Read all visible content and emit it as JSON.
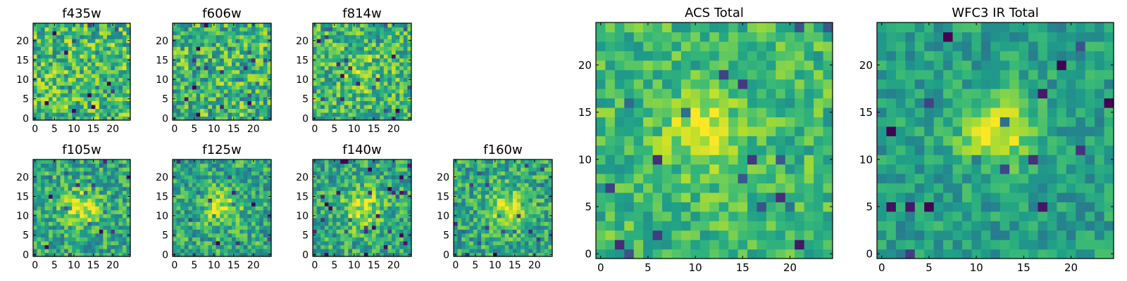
{
  "chart_data": [
    {
      "type": "heatmap",
      "title": "f435w",
      "grid_size": 25,
      "colormap": "viridis",
      "xticks": [
        0,
        5,
        10,
        15,
        20
      ],
      "yticks": [
        0,
        5,
        10,
        15,
        20
      ],
      "xlim": [
        -0.5,
        24.5
      ],
      "ylim": [
        -0.5,
        24.5
      ],
      "source_peak": [
        12,
        11
      ],
      "source_strength": 0.0,
      "source_width": 3.0,
      "noise_level": 0.55,
      "baseline": 0.68,
      "seed": 11
    },
    {
      "type": "heatmap",
      "title": "f606w",
      "grid_size": 25,
      "colormap": "viridis",
      "xticks": [
        0,
        5,
        10,
        15,
        20
      ],
      "yticks": [
        0,
        5,
        10,
        15,
        20
      ],
      "xlim": [
        -0.5,
        24.5
      ],
      "ylim": [
        -0.5,
        24.5
      ],
      "source_peak": [
        12,
        11
      ],
      "source_strength": 0.0,
      "source_width": 3.0,
      "noise_level": 0.55,
      "baseline": 0.66,
      "seed": 23
    },
    {
      "type": "heatmap",
      "title": "f814w",
      "grid_size": 25,
      "colormap": "viridis",
      "xticks": [
        0,
        5,
        10,
        15,
        20
      ],
      "yticks": [
        0,
        5,
        10,
        15,
        20
      ],
      "xlim": [
        -0.5,
        24.5
      ],
      "ylim": [
        -0.5,
        24.5
      ],
      "source_peak": [
        12,
        12
      ],
      "source_strength": 0.12,
      "source_width": 3.5,
      "noise_level": 0.5,
      "baseline": 0.66,
      "seed": 37
    },
    {
      "type": "heatmap",
      "title": "f105w",
      "grid_size": 25,
      "colormap": "viridis",
      "xticks": [
        0,
        5,
        10,
        15,
        20
      ],
      "yticks": [
        0,
        5,
        10,
        15,
        20
      ],
      "xlim": [
        -0.5,
        24.5
      ],
      "ylim": [
        -0.5,
        24.5
      ],
      "source_peak": [
        12,
        12
      ],
      "source_strength": 0.35,
      "source_width": 3.2,
      "noise_level": 0.45,
      "baseline": 0.6,
      "seed": 41
    },
    {
      "type": "heatmap",
      "title": "f125w",
      "grid_size": 25,
      "colormap": "viridis",
      "xticks": [
        0,
        5,
        10,
        15,
        20
      ],
      "yticks": [
        0,
        5,
        10,
        15,
        20
      ],
      "xlim": [
        -0.5,
        24.5
      ],
      "ylim": [
        -0.5,
        24.5
      ],
      "source_peak": [
        12,
        12
      ],
      "source_strength": 0.3,
      "source_width": 3.2,
      "noise_level": 0.45,
      "baseline": 0.6,
      "seed": 53
    },
    {
      "type": "heatmap",
      "title": "f140w",
      "grid_size": 25,
      "colormap": "viridis",
      "xticks": [
        0,
        5,
        10,
        15,
        20
      ],
      "yticks": [
        0,
        5,
        10,
        15,
        20
      ],
      "xlim": [
        -0.5,
        24.5
      ],
      "ylim": [
        -0.5,
        24.5
      ],
      "source_peak": [
        12,
        12
      ],
      "source_strength": 0.32,
      "source_width": 3.5,
      "noise_level": 0.45,
      "baseline": 0.6,
      "seed": 67
    },
    {
      "type": "heatmap",
      "title": "f160w",
      "grid_size": 25,
      "colormap": "viridis",
      "xticks": [
        0,
        5,
        10,
        15,
        20
      ],
      "yticks": [
        0,
        5,
        10,
        15,
        20
      ],
      "xlim": [
        -0.5,
        24.5
      ],
      "ylim": [
        -0.5,
        24.5
      ],
      "source_peak": [
        13,
        12
      ],
      "source_strength": 0.32,
      "source_width": 3.5,
      "noise_level": 0.45,
      "baseline": 0.6,
      "seed": 79
    },
    {
      "type": "heatmap",
      "title": "ACS Total",
      "grid_size": 25,
      "colormap": "viridis",
      "xticks": [
        0,
        5,
        10,
        15,
        20
      ],
      "yticks": [
        0,
        5,
        10,
        15,
        20
      ],
      "xlim": [
        -0.5,
        24.5
      ],
      "ylim": [
        -0.5,
        24.5
      ],
      "source_peak": [
        11,
        13
      ],
      "source_strength": 0.28,
      "source_width": 2.6,
      "noise_level": 0.35,
      "baseline": 0.68,
      "seed": 91
    },
    {
      "type": "heatmap",
      "title": "WFC3 IR Total",
      "grid_size": 25,
      "colormap": "viridis",
      "xticks": [
        0,
        5,
        10,
        15,
        20
      ],
      "yticks": [
        0,
        5,
        10,
        15,
        20
      ],
      "xlim": [
        -0.5,
        24.5
      ],
      "ylim": [
        -0.5,
        24.5
      ],
      "source_peak": [
        12,
        13
      ],
      "source_strength": 0.45,
      "source_width": 2.6,
      "noise_level": 0.3,
      "baseline": 0.56,
      "seed": 103
    }
  ]
}
